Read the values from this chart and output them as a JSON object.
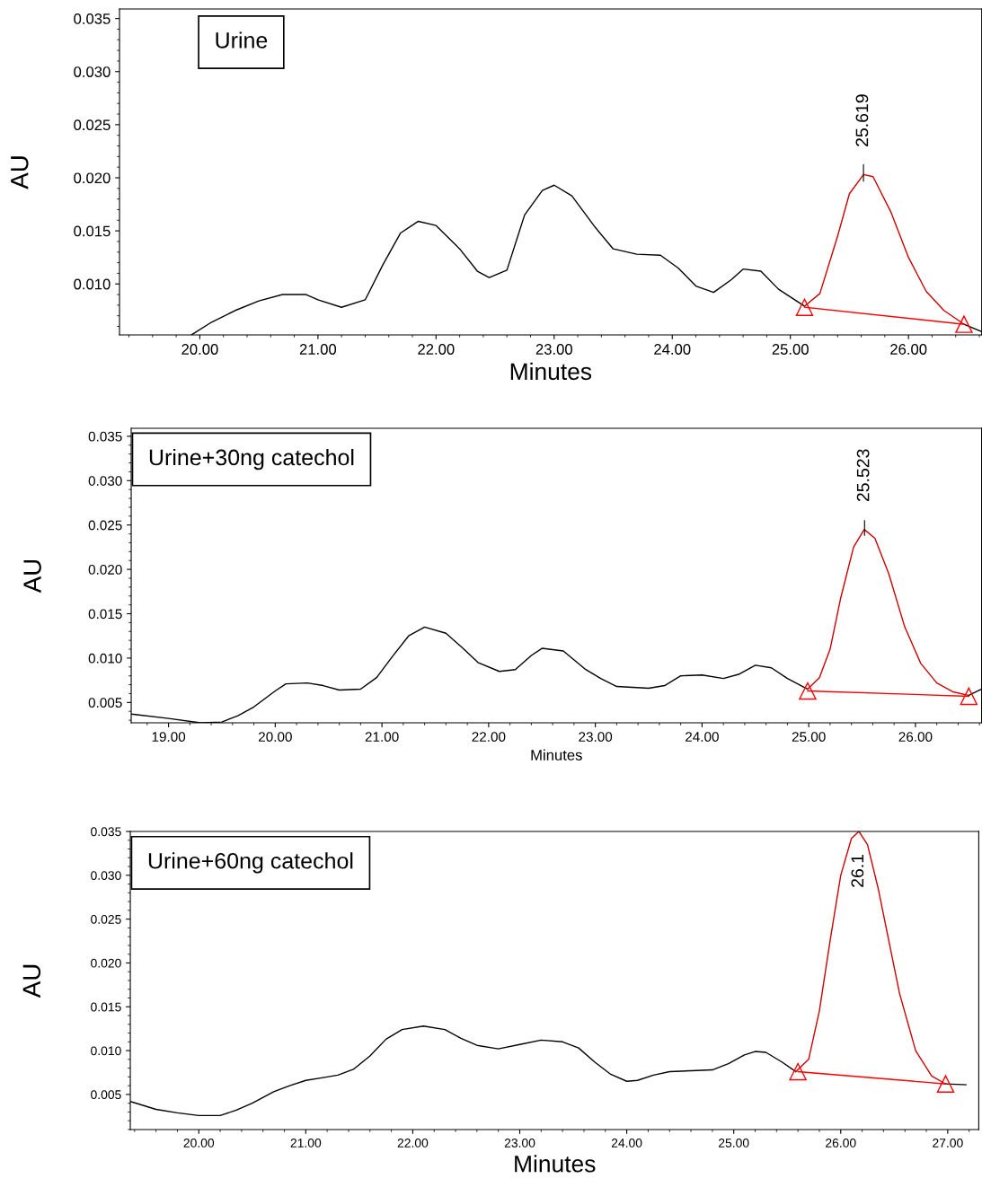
{
  "chart_data": [
    {
      "type": "line",
      "xlabel": "Minutes",
      "ylabel": "AU",
      "xlim": [
        19.32,
        26.62
      ],
      "ylim": [
        0.0052,
        0.0359
      ],
      "xticks": [
        {
          "value": 20,
          "label": "20.00"
        },
        {
          "value": 21,
          "label": "21.00"
        },
        {
          "value": 22,
          "label": "22.00"
        },
        {
          "value": 23,
          "label": "23.00"
        },
        {
          "value": 24,
          "label": "24.00"
        },
        {
          "value": 25,
          "label": "25.00"
        },
        {
          "value": 26,
          "label": "26.00"
        }
      ],
      "yticks": [
        {
          "value": 0.01,
          "label": "0.010"
        },
        {
          "value": 0.015,
          "label": "0.015"
        },
        {
          "value": 0.02,
          "label": "0.020"
        },
        {
          "value": 0.025,
          "label": "0.025"
        },
        {
          "value": 0.03,
          "label": "0.030"
        },
        {
          "value": 0.035,
          "label": "0.035"
        }
      ],
      "grid": false,
      "legend": false,
      "series": [
        {
          "color": "#000000",
          "x": [
            19.93,
            20.1,
            20.3,
            20.5,
            20.7,
            20.9,
            21.0,
            21.2,
            21.4,
            21.55,
            21.7,
            21.85,
            22.0,
            22.2,
            22.35,
            22.45,
            22.6,
            22.75,
            22.9,
            23.0,
            23.15,
            23.35,
            23.5,
            23.7,
            23.9,
            24.05,
            24.2,
            24.35,
            24.5,
            24.6,
            24.75,
            24.9,
            25.12
          ],
          "values": [
            0.0052,
            0.0064,
            0.0075,
            0.0084,
            0.009,
            0.009,
            0.0085,
            0.0078,
            0.0085,
            0.0118,
            0.0148,
            0.0159,
            0.0155,
            0.0133,
            0.0112,
            0.0106,
            0.0113,
            0.0165,
            0.0188,
            0.0193,
            0.0183,
            0.0153,
            0.0133,
            0.0128,
            0.0127,
            0.0115,
            0.0098,
            0.0092,
            0.0104,
            0.0114,
            0.0112,
            0.0095,
            0.0079
          ]
        },
        {
          "color": "#cc0000",
          "x": [
            25.12,
            25.25,
            25.4,
            25.5,
            25.62,
            25.7,
            25.85,
            26.0,
            26.15,
            26.3,
            26.47
          ],
          "values": [
            0.0079,
            0.0091,
            0.0145,
            0.0185,
            0.0203,
            0.0201,
            0.0168,
            0.0125,
            0.0093,
            0.0075,
            0.0062
          ]
        },
        {
          "color": "#000000",
          "x": [
            26.47,
            26.62
          ],
          "values": [
            0.0062,
            0.0055
          ]
        },
        {
          "color": "#ff0000",
          "marker": "triangle",
          "x": [
            25.12,
            26.47
          ],
          "values": [
            0.0078,
            0.0062
          ]
        }
      ],
      "annotations": [
        "Urine",
        {
          "text": "25.619",
          "x": 25.619,
          "y": 0.0203
        }
      ]
    },
    {
      "type": "line",
      "xlabel": "Minutes",
      "ylabel": "AU",
      "xlim": [
        18.65,
        26.62
      ],
      "ylim": [
        0.0027,
        0.0359
      ],
      "xticks": [
        {
          "value": 19,
          "label": "19.00"
        },
        {
          "value": 20,
          "label": "20.00"
        },
        {
          "value": 21,
          "label": "21.00"
        },
        {
          "value": 22,
          "label": "22.00"
        },
        {
          "value": 23,
          "label": "23.00"
        },
        {
          "value": 24,
          "label": "24.00"
        },
        {
          "value": 25,
          "label": "25.00"
        },
        {
          "value": 26,
          "label": "26.00"
        }
      ],
      "yticks": [
        {
          "value": 0.005,
          "label": "0.005"
        },
        {
          "value": 0.01,
          "label": "0.010"
        },
        {
          "value": 0.015,
          "label": "0.015"
        },
        {
          "value": 0.02,
          "label": "0.020"
        },
        {
          "value": 0.025,
          "label": "0.025"
        },
        {
          "value": 0.03,
          "label": "0.030"
        },
        {
          "value": 0.035,
          "label": "0.035"
        }
      ],
      "grid": false,
      "legend": false,
      "series": [
        {
          "color": "#000000",
          "x": [
            18.65,
            19.0,
            19.3,
            19.5,
            19.65,
            19.8,
            20.0,
            20.1,
            20.3,
            20.45,
            20.6,
            20.8,
            20.95,
            21.1,
            21.25,
            21.4,
            21.6,
            21.75,
            21.9,
            22.1,
            22.25,
            22.4,
            22.5,
            22.7,
            22.9,
            23.05,
            23.2,
            23.5,
            23.65,
            23.8,
            24.0,
            24.2,
            24.35,
            24.5,
            24.65,
            24.8,
            24.99
          ],
          "values": [
            0.0037,
            0.0032,
            0.0027,
            0.0028,
            0.0035,
            0.0045,
            0.0063,
            0.0071,
            0.0072,
            0.0069,
            0.0064,
            0.0065,
            0.0078,
            0.0102,
            0.0125,
            0.0135,
            0.0128,
            0.0112,
            0.0095,
            0.0085,
            0.0087,
            0.0103,
            0.0111,
            0.0108,
            0.0088,
            0.0077,
            0.0068,
            0.0066,
            0.0069,
            0.008,
            0.0081,
            0.0077,
            0.0082,
            0.0092,
            0.0089,
            0.0077,
            0.0065
          ]
        },
        {
          "color": "#cc0000",
          "x": [
            24.99,
            25.1,
            25.2,
            25.3,
            25.42,
            25.52,
            25.62,
            25.75,
            25.9,
            26.05,
            26.2,
            26.35,
            26.5
          ],
          "values": [
            0.0065,
            0.0078,
            0.011,
            0.0168,
            0.0225,
            0.0245,
            0.0235,
            0.0195,
            0.0135,
            0.0094,
            0.0072,
            0.0062,
            0.0058
          ]
        },
        {
          "color": "#000000",
          "x": [
            26.5,
            26.62
          ],
          "values": [
            0.0058,
            0.0065
          ]
        },
        {
          "color": "#ff0000",
          "marker": "triangle",
          "x": [
            24.99,
            26.5
          ],
          "values": [
            0.0063,
            0.0057
          ]
        }
      ],
      "annotations": [
        "Urine+30ng catechol",
        {
          "text": "25.523",
          "x": 25.523,
          "y": 0.0245
        }
      ]
    },
    {
      "type": "line",
      "xlabel": "Minutes",
      "ylabel": "AU",
      "xlim": [
        19.36,
        27.29
      ],
      "ylim": [
        0.001,
        0.035
      ],
      "xticks": [
        {
          "value": 20,
          "label": "20.00"
        },
        {
          "value": 21,
          "label": "21.00"
        },
        {
          "value": 22,
          "label": "22.00"
        },
        {
          "value": 23,
          "label": "23.00"
        },
        {
          "value": 24,
          "label": "24.00"
        },
        {
          "value": 25,
          "label": "25.00"
        },
        {
          "value": 26,
          "label": "26.00"
        },
        {
          "value": 27,
          "label": "27.00"
        }
      ],
      "yticks": [
        {
          "value": 0.005,
          "label": "0.005"
        },
        {
          "value": 0.01,
          "label": "0.010"
        },
        {
          "value": 0.015,
          "label": "0.015"
        },
        {
          "value": 0.02,
          "label": "0.020"
        },
        {
          "value": 0.025,
          "label": "0.025"
        },
        {
          "value": 0.03,
          "label": "0.030"
        },
        {
          "value": 0.035,
          "label": "0.035"
        }
      ],
      "grid": false,
      "legend": false,
      "series": [
        {
          "color": "#000000",
          "x": [
            19.36,
            19.6,
            19.8,
            20.0,
            20.2,
            20.35,
            20.5,
            20.7,
            20.85,
            21.0,
            21.15,
            21.3,
            21.45,
            21.6,
            21.75,
            21.9,
            22.1,
            22.3,
            22.45,
            22.6,
            22.8,
            23.0,
            23.2,
            23.4,
            23.55,
            23.7,
            23.85,
            24.0,
            24.1,
            24.25,
            24.4,
            24.6,
            24.8,
            24.95,
            25.1,
            25.2,
            25.3,
            25.45,
            25.58
          ],
          "values": [
            0.0042,
            0.0033,
            0.0029,
            0.0026,
            0.0026,
            0.0032,
            0.004,
            0.0053,
            0.006,
            0.0066,
            0.0069,
            0.0072,
            0.0079,
            0.0094,
            0.0113,
            0.0124,
            0.0128,
            0.0124,
            0.0114,
            0.0106,
            0.0102,
            0.0107,
            0.0112,
            0.011,
            0.0103,
            0.0087,
            0.0073,
            0.0065,
            0.0066,
            0.0072,
            0.0076,
            0.0077,
            0.0078,
            0.0085,
            0.0095,
            0.0099,
            0.0098,
            0.0087,
            0.0076
          ]
        },
        {
          "color": "#cc0000",
          "x": [
            25.58,
            25.7,
            25.8,
            25.9,
            26.0,
            26.1,
            26.17,
            26.25,
            26.35,
            26.45,
            26.55,
            26.7,
            26.85,
            26.98
          ],
          "values": [
            0.0076,
            0.009,
            0.0145,
            0.0225,
            0.03,
            0.0342,
            0.035,
            0.0335,
            0.0285,
            0.0225,
            0.0165,
            0.01,
            0.0071,
            0.0062
          ]
        },
        {
          "color": "#000000",
          "x": [
            26.98,
            27.17
          ],
          "values": [
            0.0062,
            0.0061
          ]
        },
        {
          "color": "#ff0000",
          "marker": "triangle",
          "x": [
            25.6,
            26.98
          ],
          "values": [
            0.0076,
            0.0062
          ]
        }
      ],
      "annotations": [
        "Urine+60ng catechol",
        {
          "text": "26.1",
          "x": 26.17,
          "y": 0.035
        }
      ]
    }
  ]
}
